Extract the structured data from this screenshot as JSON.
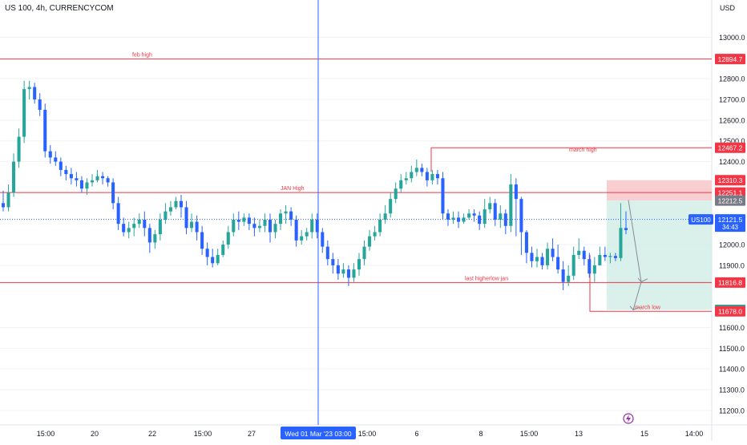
{
  "header": {
    "symbol": "US 100, 4h, CURRENCYCOM",
    "currency": "USD"
  },
  "colors": {
    "up": "#26a69a",
    "down": "#2962ff",
    "level_line": "#f23645",
    "current_price": "#2962ff",
    "crosshair": "#2962ff",
    "stop_zone": "#f7c5c9",
    "target_zone": "#d4ede8"
  },
  "chart_data": {
    "type": "candlestick",
    "ylim": [
      11130,
      13110
    ],
    "y_ticks": [
      "13000.0",
      "12800.0",
      "12700.0",
      "12600.0",
      "12500.0",
      "12400.0",
      "12000.0",
      "11900.0",
      "11600.0",
      "11500.0",
      "11400.0",
      "11300.0",
      "11200.0"
    ],
    "x_ticks": [
      "15:00",
      "20",
      "22",
      "15:00",
      "27",
      "15:00",
      "6",
      "8",
      "15:00",
      "13",
      "15",
      "14:00"
    ],
    "crosshair_label": "Wed 01 Mar '23   03:00",
    "current_price": {
      "symbol": "US100",
      "value": "12121.5",
      "countdown": "34:43"
    },
    "levels": [
      {
        "name": "feb high",
        "price": 12894.7,
        "label": "12894.7"
      },
      {
        "name": "JAN High",
        "price": 12251.1,
        "label": "12251.1"
      },
      {
        "name": "last higherlow jan",
        "price": 11816.8,
        "label": "11816.8"
      },
      {
        "name": "march high",
        "price": 12467.2,
        "label": "12467.2"
      },
      {
        "name": "march low",
        "price": 11678.0,
        "label": "11678.0"
      }
    ],
    "position": {
      "stop": {
        "price": 12310.3,
        "label": "12310.3"
      },
      "entry": {
        "price": 12212.5,
        "label": "12212.5"
      },
      "target": {
        "price": 11684.9,
        "label": "11684.9"
      }
    },
    "close": [
      12180,
      12250,
      12400,
      12520,
      12750,
      12760,
      12700,
      12650,
      12450,
      12420,
      12400,
      12360,
      12340,
      12320,
      12310,
      12270,
      12300,
      12310,
      12330,
      12320,
      12300,
      12200,
      12100,
      12060,
      12080,
      12100,
      12120,
      12080,
      12010,
      12050,
      12120,
      12160,
      12180,
      12210,
      12180,
      12080,
      12110,
      12060,
      11980,
      11940,
      11910,
      11950,
      12000,
      12060,
      12120,
      12110,
      12130,
      12100,
      12080,
      12090,
      12120,
      12060,
      12100,
      12150,
      12160,
      12120,
      12020,
      12040,
      12060,
      12120,
      12060,
      11990,
      11930,
      11900,
      11860,
      11880,
      11840,
      11880,
      11930,
      11990,
      12040,
      12060,
      12120,
      12150,
      12220,
      12270,
      12310,
      12320,
      12350,
      12370,
      12350,
      12310,
      12340,
      12320,
      12150,
      12120,
      12130,
      12110,
      12130,
      12150,
      12140,
      12100,
      12170,
      12200,
      12120,
      12150,
      12090,
      12290,
      12220,
      12060,
      11960,
      11920,
      11940,
      11900,
      11980,
      11940,
      11880,
      11820,
      11850,
      11950,
      11970,
      11930,
      11860,
      11900,
      11950,
      11940,
      11945,
      11935,
      12080,
      12070
    ],
    "open": [
      12200,
      12180,
      12250,
      12400,
      12520,
      12750,
      12760,
      12700,
      12650,
      12450,
      12420,
      12400,
      12360,
      12340,
      12320,
      12310,
      12270,
      12300,
      12310,
      12330,
      12320,
      12300,
      12200,
      12100,
      12060,
      12080,
      12100,
      12120,
      12080,
      12010,
      12050,
      12120,
      12160,
      12180,
      12210,
      12180,
      12080,
      12110,
      12060,
      11980,
      11940,
      11910,
      11950,
      12000,
      12060,
      12120,
      12110,
      12130,
      12100,
      12080,
      12090,
      12120,
      12060,
      12100,
      12150,
      12160,
      12120,
      12020,
      12040,
      12060,
      12120,
      12060,
      11990,
      11930,
      11900,
      11860,
      11880,
      11840,
      11880,
      11930,
      11990,
      12040,
      12060,
      12120,
      12150,
      12220,
      12270,
      12310,
      12320,
      12350,
      12370,
      12350,
      12310,
      12340,
      12320,
      12150,
      12120,
      12130,
      12110,
      12130,
      12150,
      12140,
      12100,
      12170,
      12200,
      12120,
      12150,
      12090,
      12290,
      12220,
      12060,
      11960,
      11920,
      11940,
      11900,
      11980,
      11940,
      11880,
      11820,
      11850,
      11950,
      11970,
      11930,
      11860,
      11900,
      11950,
      11940,
      11945,
      11935,
      12080
    ],
    "high": [
      12260,
      12290,
      12440,
      12560,
      12790,
      12790,
      12780,
      12730,
      12680,
      12480,
      12450,
      12420,
      12380,
      12370,
      12350,
      12330,
      12320,
      12340,
      12360,
      12350,
      12330,
      12320,
      12230,
      12130,
      12110,
      12130,
      12150,
      12160,
      12100,
      12070,
      12150,
      12200,
      12210,
      12230,
      12240,
      12210,
      12150,
      12140,
      12090,
      12010,
      11980,
      11980,
      12020,
      12090,
      12150,
      12160,
      12150,
      12150,
      12130,
      12120,
      12150,
      12150,
      12120,
      12170,
      12190,
      12180,
      12140,
      12070,
      12080,
      12150,
      12150,
      12080,
      12020,
      11960,
      11930,
      11910,
      11900,
      11910,
      11960,
      12020,
      12070,
      12090,
      12150,
      12190,
      12250,
      12300,
      12340,
      12350,
      12380,
      12410,
      12390,
      12370,
      12360,
      12360,
      12350,
      12170,
      12160,
      12160,
      12150,
      12170,
      12170,
      12160,
      12220,
      12230,
      12220,
      12190,
      12170,
      12340,
      12320,
      12230,
      12070,
      11990,
      11980,
      11960,
      12010,
      12030,
      12000,
      11920,
      11900,
      11990,
      12030,
      11990,
      11960,
      11940,
      11990,
      11990,
      11960,
      11960,
      12200,
      12160
    ],
    "low": [
      12160,
      12160,
      12230,
      12370,
      12490,
      12700,
      12680,
      12620,
      12420,
      12390,
      12380,
      12330,
      12310,
      12290,
      12280,
      12250,
      12240,
      12280,
      12300,
      12290,
      12280,
      12170,
      12070,
      12040,
      12030,
      12040,
      12080,
      12040,
      11960,
      11980,
      12020,
      12100,
      12140,
      12170,
      12130,
      12050,
      12060,
      12020,
      11950,
      11900,
      11890,
      11900,
      11940,
      11980,
      12040,
      12070,
      12090,
      12070,
      12040,
      12060,
      12060,
      12010,
      12030,
      12070,
      12100,
      12090,
      11990,
      12000,
      12020,
      12030,
      12030,
      11960,
      11900,
      11860,
      11830,
      11840,
      11800,
      11820,
      11850,
      11900,
      11970,
      12020,
      12040,
      12100,
      12130,
      12200,
      12250,
      12290,
      12300,
      12330,
      12330,
      12280,
      12290,
      12290,
      12120,
      12090,
      12100,
      12080,
      12100,
      12120,
      12110,
      12070,
      12080,
      12150,
      12090,
      12080,
      12050,
      12060,
      12040,
      11950,
      11910,
      11890,
      11890,
      11880,
      11880,
      11920,
      11860,
      11780,
      11800,
      11830,
      11930,
      11900,
      11840,
      11820,
      11900,
      11920,
      11910,
      11920,
      11920,
      12050
    ]
  },
  "footer": {
    "alert_icon": "lightning-icon"
  }
}
